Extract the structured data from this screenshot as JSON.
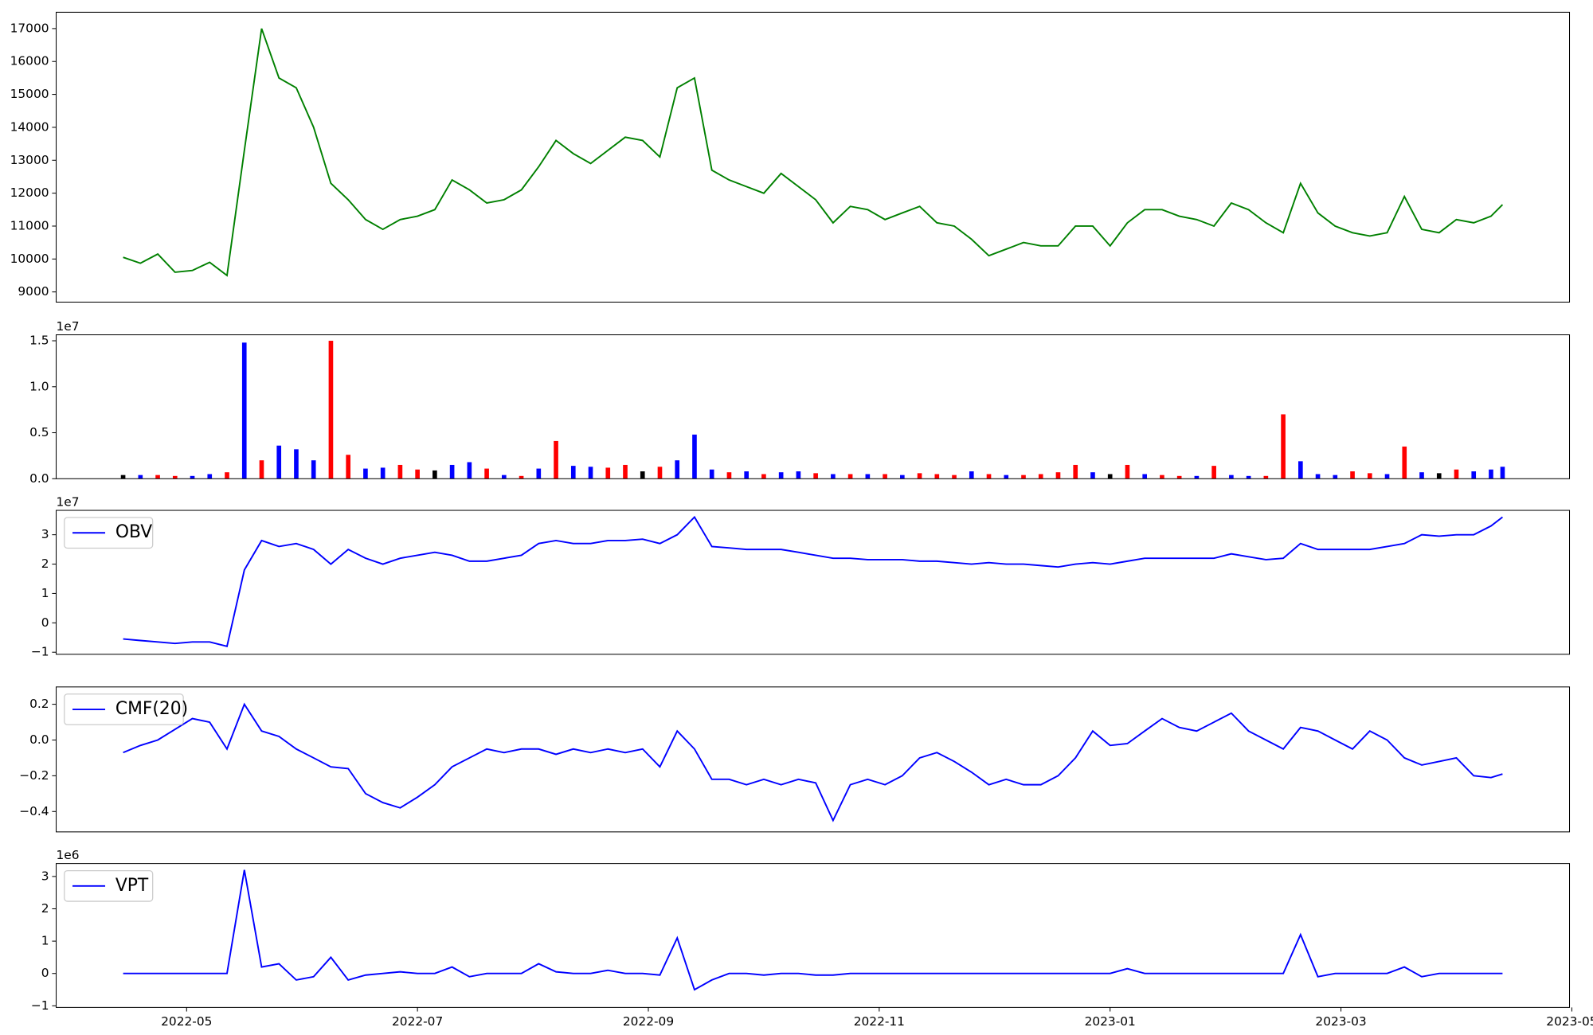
{
  "chart_data": {
    "type": "multi",
    "x": [
      -0.55,
      -0.4,
      -0.25,
      -0.1,
      0.05,
      0.2,
      0.35,
      0.5,
      0.65,
      0.8,
      0.95,
      1.1,
      1.25,
      1.4,
      1.55,
      1.7,
      1.85,
      2.0,
      2.15,
      2.3,
      2.45,
      2.6,
      2.75,
      2.9,
      3.05,
      3.2,
      3.35,
      3.5,
      3.65,
      3.8,
      3.95,
      4.1,
      4.25,
      4.4,
      4.55,
      4.7,
      4.85,
      5.0,
      5.15,
      5.3,
      5.45,
      5.6,
      5.75,
      5.9,
      6.05,
      6.2,
      6.35,
      6.5,
      6.65,
      6.8,
      6.95,
      7.1,
      7.25,
      7.4,
      7.55,
      7.7,
      7.85,
      8.0,
      8.15,
      8.3,
      8.45,
      8.6,
      8.75,
      8.9,
      9.05,
      9.2,
      9.35,
      9.5,
      9.65,
      9.8,
      9.95,
      10.1,
      10.25,
      10.4,
      10.55,
      10.7,
      10.85,
      11.0,
      11.15,
      11.3,
      11.4
    ],
    "xlim": [
      -1.13,
      11.98
    ],
    "xticks": [
      {
        "value": 0,
        "label": "2022-05"
      },
      {
        "value": 2,
        "label": "2022-07"
      },
      {
        "value": 4,
        "label": "2022-09"
      },
      {
        "value": 6,
        "label": "2022-11"
      },
      {
        "value": 8,
        "label": "2023-01"
      },
      {
        "value": 10,
        "label": "2023-03"
      },
      {
        "value": 12,
        "label": "2023-05"
      }
    ],
    "panels": [
      {
        "type": "line",
        "ylim": [
          8690,
          17496
        ],
        "yticks": [
          9000,
          10000,
          11000,
          12000,
          13000,
          14000,
          15000,
          16000,
          17000
        ],
        "series": [
          {
            "color": "#008000",
            "values": [
              10050,
              9870,
              10150,
              9600,
              9650,
              9900,
              9500,
              13300,
              17000,
              15500,
              15200,
              14000,
              12300,
              11800,
              11200,
              10900,
              11200,
              11300,
              11500,
              12400,
              12100,
              11700,
              11800,
              12100,
              12800,
              13600,
              13200,
              12900,
              13300,
              13700,
              13600,
              13100,
              15200,
              15500,
              12700,
              12400,
              12200,
              12000,
              12600,
              12200,
              11800,
              11100,
              11600,
              11500,
              11200,
              11400,
              11600,
              11100,
              11000,
              10600,
              10100,
              10300,
              10500,
              10400,
              10400,
              11000,
              11000,
              10400,
              11100,
              11500,
              11500,
              11300,
              11200,
              11000,
              11700,
              11500,
              11100,
              10800,
              12300,
              11400,
              11000,
              10800,
              10700,
              10800,
              11900,
              10900,
              10800,
              11200,
              11100,
              11300,
              11650
            ]
          }
        ]
      },
      {
        "type": "bar",
        "ylim": [
          0,
          15650000
        ],
        "offset_label": "1e7",
        "yticks": [
          {
            "value": 0,
            "label": "0.0"
          },
          {
            "value": 5000000,
            "label": "0.5"
          },
          {
            "value": 10000000,
            "label": "1.0"
          },
          {
            "value": 15000000,
            "label": "1.5"
          }
        ],
        "series": [
          {
            "values": [
              400000,
              400000,
              400000,
              300000,
              300000,
              500000,
              700000,
              14800000,
              2000000,
              3600000,
              3200000,
              2000000,
              15000000,
              2600000,
              1100000,
              1200000,
              1500000,
              1000000,
              900000,
              1500000,
              1800000,
              1100000,
              400000,
              300000,
              1100000,
              4100000,
              1400000,
              1300000,
              1200000,
              1500000,
              800000,
              1300000,
              2000000,
              4800000,
              1000000,
              700000,
              800000,
              500000,
              700000,
              800000,
              600000,
              500000,
              500000,
              500000,
              500000,
              400000,
              600000,
              500000,
              400000,
              800000,
              500000,
              400000,
              400000,
              500000,
              700000,
              1500000,
              700000,
              500000,
              1500000,
              500000,
              400000,
              300000,
              300000,
              1400000,
              400000,
              300000,
              300000,
              7000000,
              1900000,
              500000,
              400000,
              800000,
              600000,
              500000,
              3500000,
              700000,
              600000,
              1000000,
              800000,
              1000000,
              1300000
            ],
            "colors": [
              "black",
              "blue",
              "red",
              "red",
              "blue",
              "blue",
              "red",
              "blue",
              "red",
              "blue",
              "blue",
              "blue",
              "red",
              "red",
              "blue",
              "blue",
              "red",
              "red",
              "black",
              "blue",
              "blue",
              "red",
              "blue",
              "red",
              "blue",
              "red",
              "blue",
              "blue",
              "red",
              "red",
              "black",
              "red",
              "blue",
              "blue",
              "blue",
              "red",
              "blue",
              "red",
              "blue",
              "blue",
              "red",
              "blue",
              "red",
              "blue",
              "red",
              "blue",
              "red",
              "red",
              "red",
              "blue",
              "red",
              "blue",
              "red",
              "red",
              "red",
              "red",
              "blue",
              "black",
              "red",
              "blue",
              "red",
              "red",
              "blue",
              "red",
              "blue",
              "blue",
              "red",
              "red",
              "blue",
              "blue",
              "blue",
              "red",
              "red",
              "blue",
              "red",
              "blue",
              "black",
              "red",
              "blue",
              "blue",
              "blue"
            ]
          }
        ]
      },
      {
        "type": "line",
        "ylim": [
          -10700000,
          38300000
        ],
        "offset_label": "1e7",
        "legend": "upper left",
        "yticks": [
          {
            "value": -10000000,
            "label": "−1"
          },
          {
            "value": 0,
            "label": "0"
          },
          {
            "value": 10000000,
            "label": "1"
          },
          {
            "value": 20000000,
            "label": "2"
          },
          {
            "value": 30000000,
            "label": "3"
          }
        ],
        "series": [
          {
            "name": "OBV",
            "color": "#0000ff",
            "values": [
              -5500000,
              -6000000,
              -6500000,
              -7000000,
              -6500000,
              -6500000,
              -8000000,
              18000000,
              28000000,
              26000000,
              27000000,
              25000000,
              20000000,
              25000000,
              22000000,
              20000000,
              22000000,
              23000000,
              24000000,
              23000000,
              21000000,
              21000000,
              22000000,
              23000000,
              27000000,
              28000000,
              27000000,
              27000000,
              28000000,
              28000000,
              28500000,
              27000000,
              30000000,
              36000000,
              26000000,
              25500000,
              25000000,
              25000000,
              25000000,
              24000000,
              23000000,
              22000000,
              22000000,
              21500000,
              21500000,
              21500000,
              21000000,
              21000000,
              20500000,
              20000000,
              20500000,
              20000000,
              20000000,
              19500000,
              19000000,
              20000000,
              20500000,
              20000000,
              21000000,
              22000000,
              22000000,
              22000000,
              22000000,
              22000000,
              23500000,
              22500000,
              21500000,
              22000000,
              27000000,
              25000000,
              25000000,
              25000000,
              25000000,
              26000000,
              27000000,
              30000000,
              29500000,
              30000000,
              30000000,
              33000000,
              36000000
            ]
          }
        ]
      },
      {
        "type": "line",
        "ylim": [
          -0.514,
          0.297
        ],
        "legend": "upper left",
        "yticks": [
          {
            "value": -0.4,
            "label": "−0.4"
          },
          {
            "value": -0.2,
            "label": "−0.2"
          },
          {
            "value": 0,
            "label": "0.0"
          },
          0.2
        ],
        "series": [
          {
            "name": "CMF(20)",
            "color": "#0000ff",
            "values": [
              -0.07,
              -0.03,
              0.0,
              0.06,
              0.12,
              0.1,
              -0.05,
              0.2,
              0.05,
              0.02,
              -0.05,
              -0.1,
              -0.15,
              -0.16,
              -0.3,
              -0.35,
              -0.38,
              -0.32,
              -0.25,
              -0.15,
              -0.1,
              -0.05,
              -0.07,
              -0.05,
              -0.05,
              -0.08,
              -0.05,
              -0.07,
              -0.05,
              -0.07,
              -0.05,
              -0.15,
              0.05,
              -0.05,
              -0.22,
              -0.22,
              -0.25,
              -0.22,
              -0.25,
              -0.22,
              -0.24,
              -0.45,
              -0.25,
              -0.22,
              -0.25,
              -0.2,
              -0.1,
              -0.07,
              -0.12,
              -0.18,
              -0.25,
              -0.22,
              -0.25,
              -0.25,
              -0.2,
              -0.1,
              0.05,
              -0.03,
              -0.02,
              0.05,
              0.12,
              0.07,
              0.05,
              0.1,
              0.15,
              0.05,
              0.0,
              -0.05,
              0.07,
              0.05,
              0.0,
              -0.05,
              0.05,
              0.0,
              -0.1,
              -0.14,
              -0.12,
              -0.1,
              -0.2,
              -0.21,
              -0.19
            ]
          }
        ]
      },
      {
        "type": "line",
        "ylim": [
          -1050000,
          3400000
        ],
        "offset_label": "1e6",
        "legend": "upper left",
        "yticks": [
          {
            "value": -1000000,
            "label": "−1"
          },
          {
            "value": 0,
            "label": "0"
          },
          {
            "value": 1000000,
            "label": "1"
          },
          {
            "value": 2000000,
            "label": "2"
          },
          {
            "value": 3000000,
            "label": "3"
          }
        ],
        "series": [
          {
            "name": "VPT",
            "color": "#0000ff",
            "values": [
              0,
              0,
              0,
              0,
              0,
              0,
              0,
              3200000,
              200000,
              300000,
              -200000,
              -100000,
              500000,
              -200000,
              -50000,
              0,
              50000,
              0,
              0,
              200000,
              -100000,
              0,
              0,
              0,
              300000,
              50000,
              0,
              0,
              100000,
              0,
              0,
              -50000,
              1100000,
              -500000,
              -200000,
              0,
              0,
              -50000,
              0,
              0,
              -50000,
              -50000,
              0,
              0,
              0,
              0,
              0,
              0,
              0,
              0,
              0,
              0,
              0,
              0,
              0,
              0,
              0,
              0,
              150000,
              0,
              0,
              0,
              0,
              0,
              0,
              0,
              0,
              0,
              1200000,
              -100000,
              0,
              0,
              0,
              0,
              200000,
              -100000,
              0,
              0,
              0,
              0,
              0
            ]
          }
        ]
      }
    ]
  }
}
